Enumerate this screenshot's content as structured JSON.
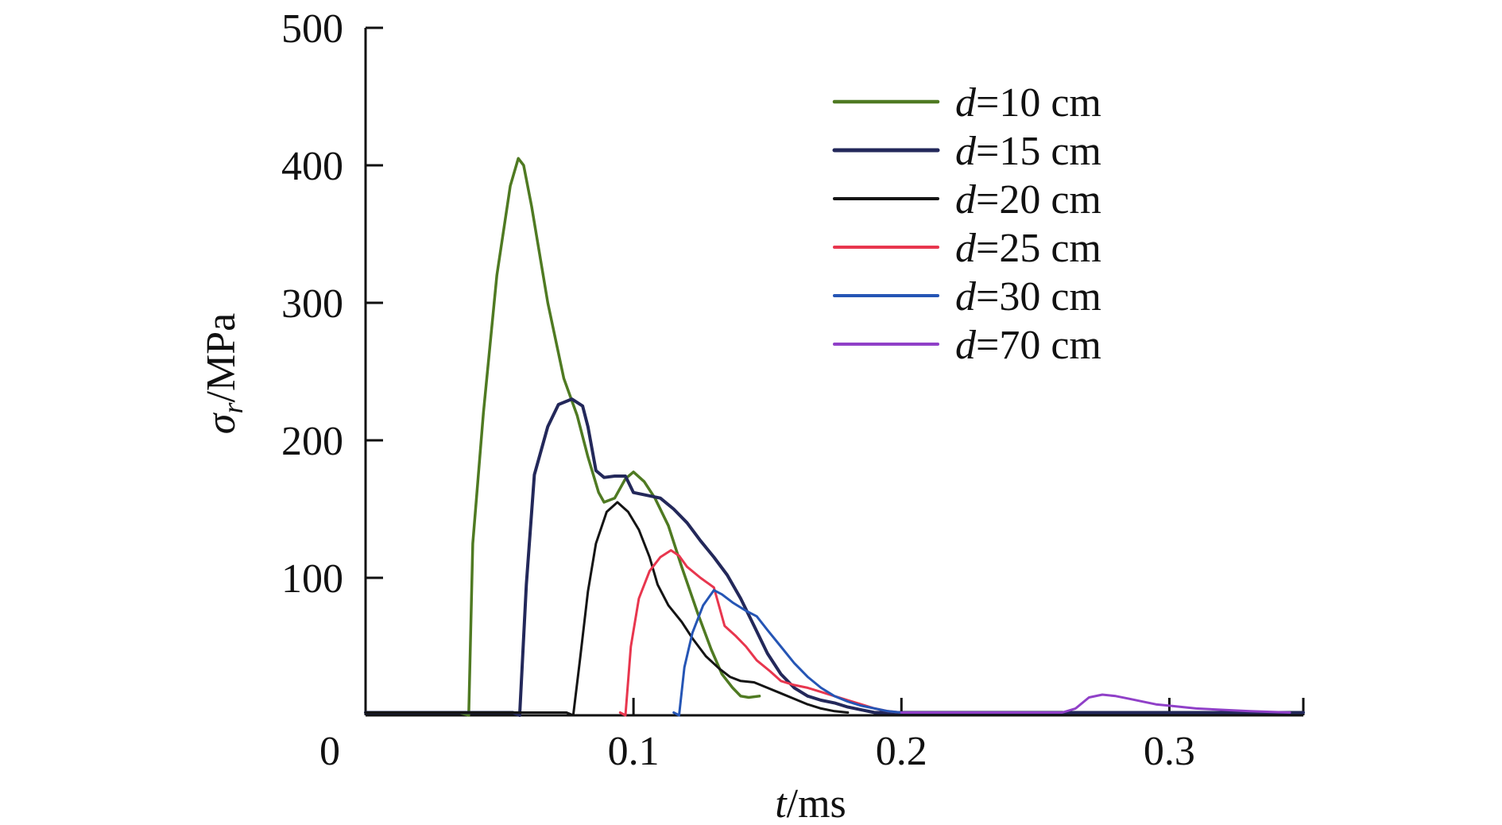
{
  "chart_data": {
    "type": "line",
    "xlabel_var": "t",
    "xlabel_unit": "/ms",
    "ylabel_var": "σ",
    "ylabel_sub": "r",
    "ylabel_unit": "/MPa",
    "xlim": [
      0,
      0.35
    ],
    "ylim": [
      0,
      500
    ],
    "x_origin_label": "0",
    "xticks": [
      {
        "value": 0.1,
        "label": "0.1"
      },
      {
        "value": 0.2,
        "label": "0.2"
      },
      {
        "value": 0.3,
        "label": "0.3"
      }
    ],
    "yticks": [
      {
        "value": 100,
        "label": "100"
      },
      {
        "value": 200,
        "label": "200"
      },
      {
        "value": 300,
        "label": "300"
      },
      {
        "value": 400,
        "label": "400"
      },
      {
        "value": 500,
        "label": "500"
      }
    ],
    "grid": false,
    "legend_position": "top-right",
    "series": [
      {
        "var": "d",
        "value_text": "=10 cm",
        "color": "#4f7a22",
        "width": 3.5,
        "points": [
          [
            0,
            2
          ],
          [
            0.035,
            2
          ],
          [
            0.0385,
            0
          ],
          [
            0.04,
            125
          ],
          [
            0.044,
            220
          ],
          [
            0.049,
            320
          ],
          [
            0.054,
            385
          ],
          [
            0.057,
            405
          ],
          [
            0.059,
            400
          ],
          [
            0.062,
            370
          ],
          [
            0.068,
            300
          ],
          [
            0.074,
            245
          ],
          [
            0.079,
            218
          ],
          [
            0.083,
            188
          ],
          [
            0.087,
            162
          ],
          [
            0.089,
            155
          ],
          [
            0.093,
            158
          ],
          [
            0.097,
            172
          ],
          [
            0.1,
            177
          ],
          [
            0.104,
            170
          ],
          [
            0.108,
            158
          ],
          [
            0.113,
            138
          ],
          [
            0.118,
            108
          ],
          [
            0.124,
            74
          ],
          [
            0.129,
            48
          ],
          [
            0.133,
            30
          ],
          [
            0.137,
            20
          ],
          [
            0.14,
            14
          ],
          [
            0.143,
            13
          ],
          [
            0.147,
            14
          ]
        ]
      },
      {
        "var": "d",
        "value_text": "=15 cm",
        "color": "#23285a",
        "width": 4,
        "points": [
          [
            0,
            2
          ],
          [
            0.055,
            2
          ],
          [
            0.0575,
            0
          ],
          [
            0.06,
            95
          ],
          [
            0.063,
            175
          ],
          [
            0.068,
            210
          ],
          [
            0.072,
            226
          ],
          [
            0.077,
            230
          ],
          [
            0.081,
            225
          ],
          [
            0.083,
            210
          ],
          [
            0.086,
            178
          ],
          [
            0.089,
            173
          ],
          [
            0.093,
            174
          ],
          [
            0.097,
            174
          ],
          [
            0.1,
            162
          ],
          [
            0.105,
            160
          ],
          [
            0.11,
            158
          ],
          [
            0.115,
            150
          ],
          [
            0.12,
            140
          ],
          [
            0.125,
            127
          ],
          [
            0.13,
            115
          ],
          [
            0.135,
            102
          ],
          [
            0.14,
            85
          ],
          [
            0.145,
            65
          ],
          [
            0.15,
            45
          ],
          [
            0.155,
            30
          ],
          [
            0.16,
            20
          ],
          [
            0.165,
            14
          ],
          [
            0.17,
            11
          ],
          [
            0.175,
            9
          ],
          [
            0.18,
            6
          ],
          [
            0.185,
            4
          ],
          [
            0.19,
            2
          ],
          [
            0.2,
            2
          ],
          [
            0.35,
            2
          ]
        ]
      },
      {
        "var": "d",
        "value_text": "=20 cm",
        "color": "#141414",
        "width": 3,
        "points": [
          [
            0,
            2
          ],
          [
            0.075,
            2
          ],
          [
            0.0775,
            0
          ],
          [
            0.08,
            40
          ],
          [
            0.083,
            90
          ],
          [
            0.086,
            125
          ],
          [
            0.09,
            148
          ],
          [
            0.094,
            155
          ],
          [
            0.098,
            148
          ],
          [
            0.102,
            135
          ],
          [
            0.106,
            115
          ],
          [
            0.109,
            95
          ],
          [
            0.113,
            80
          ],
          [
            0.118,
            68
          ],
          [
            0.122,
            56
          ],
          [
            0.127,
            43
          ],
          [
            0.132,
            34
          ],
          [
            0.136,
            28
          ],
          [
            0.14,
            25
          ],
          [
            0.145,
            24
          ],
          [
            0.15,
            20
          ],
          [
            0.155,
            16
          ],
          [
            0.16,
            12
          ],
          [
            0.165,
            8
          ],
          [
            0.17,
            5
          ],
          [
            0.175,
            3
          ],
          [
            0.18,
            2
          ]
        ]
      },
      {
        "var": "d",
        "value_text": "=25 cm",
        "color": "#e8364e",
        "width": 3,
        "points": [
          [
            0.095,
            2
          ],
          [
            0.097,
            0
          ],
          [
            0.099,
            50
          ],
          [
            0.102,
            85
          ],
          [
            0.106,
            105
          ],
          [
            0.11,
            115
          ],
          [
            0.114,
            120
          ],
          [
            0.117,
            116
          ],
          [
            0.12,
            108
          ],
          [
            0.125,
            100
          ],
          [
            0.13,
            93
          ],
          [
            0.134,
            65
          ],
          [
            0.138,
            58
          ],
          [
            0.142,
            50
          ],
          [
            0.146,
            40
          ],
          [
            0.151,
            32
          ],
          [
            0.155,
            25
          ],
          [
            0.16,
            22
          ],
          [
            0.165,
            20
          ],
          [
            0.17,
            17
          ],
          [
            0.175,
            14
          ],
          [
            0.18,
            11
          ],
          [
            0.185,
            8
          ],
          [
            0.19,
            5
          ],
          [
            0.195,
            3
          ],
          [
            0.2,
            2
          ]
        ]
      },
      {
        "var": "d",
        "value_text": "=30 cm",
        "color": "#2555b5",
        "width": 3,
        "points": [
          [
            0.115,
            2
          ],
          [
            0.117,
            0
          ],
          [
            0.119,
            35
          ],
          [
            0.122,
            60
          ],
          [
            0.126,
            80
          ],
          [
            0.13,
            91
          ],
          [
            0.133,
            88
          ],
          [
            0.137,
            82
          ],
          [
            0.142,
            76
          ],
          [
            0.146,
            72
          ],
          [
            0.15,
            62
          ],
          [
            0.155,
            50
          ],
          [
            0.16,
            38
          ],
          [
            0.165,
            28
          ],
          [
            0.17,
            20
          ],
          [
            0.175,
            14
          ],
          [
            0.18,
            10
          ],
          [
            0.185,
            7
          ],
          [
            0.19,
            5
          ],
          [
            0.195,
            3
          ],
          [
            0.2,
            2
          ]
        ]
      },
      {
        "var": "d",
        "value_text": "=70 cm",
        "color": "#9040c8",
        "width": 3,
        "points": [
          [
            0.2,
            2
          ],
          [
            0.26,
            2
          ],
          [
            0.265,
            5
          ],
          [
            0.27,
            13
          ],
          [
            0.275,
            15
          ],
          [
            0.28,
            14
          ],
          [
            0.285,
            12
          ],
          [
            0.29,
            10
          ],
          [
            0.295,
            8
          ],
          [
            0.3,
            7
          ],
          [
            0.31,
            5
          ],
          [
            0.32,
            4
          ],
          [
            0.33,
            3
          ],
          [
            0.345,
            2
          ]
        ]
      }
    ]
  }
}
